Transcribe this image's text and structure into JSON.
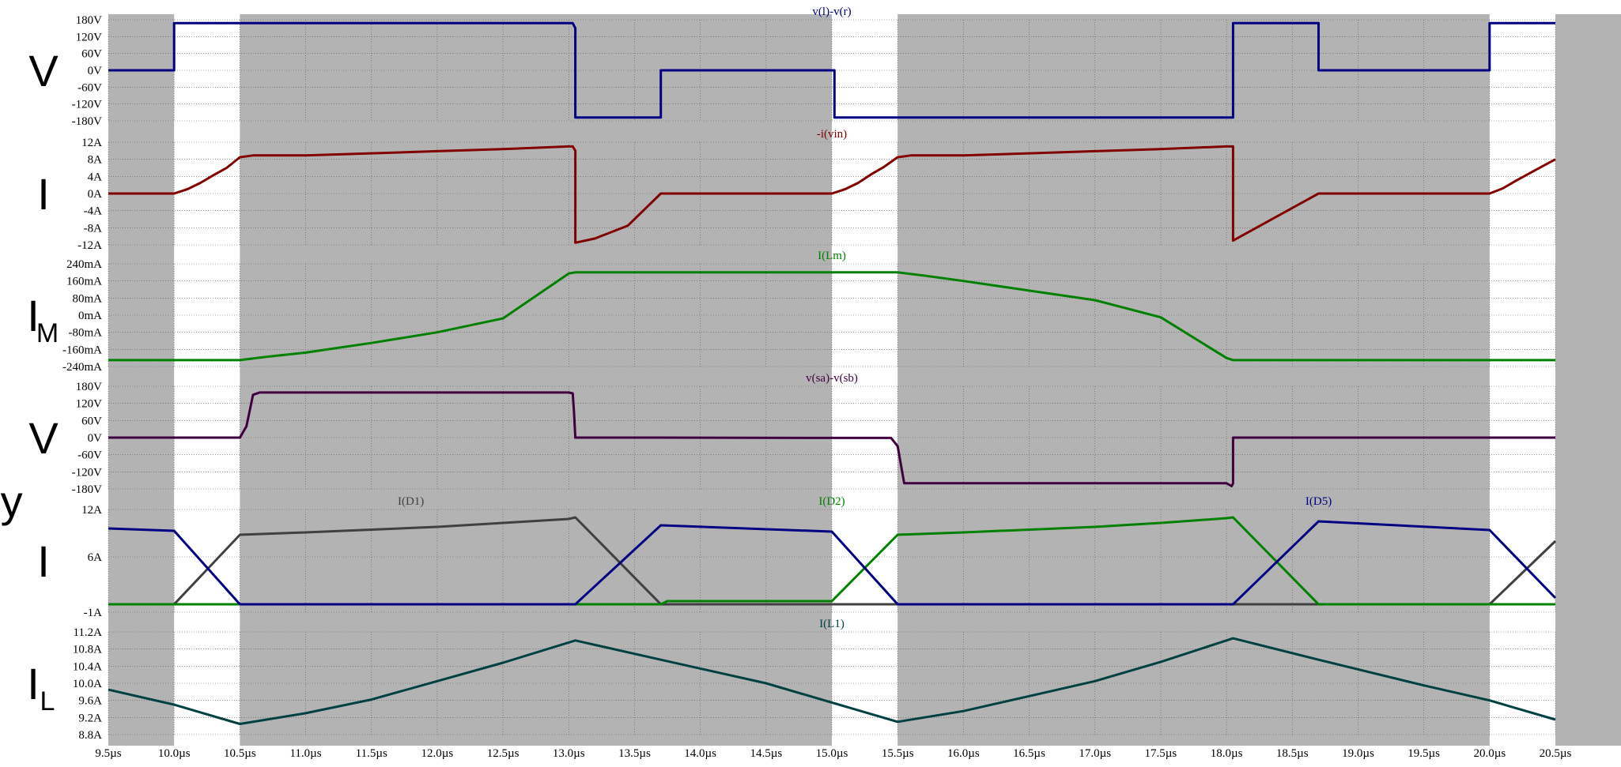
{
  "chart_data": {
    "type": "line",
    "x_axis": {
      "range": [
        9.5,
        20.5
      ],
      "unit": "µs",
      "tick_values": [
        9.5,
        10.0,
        10.5,
        11.0,
        11.5,
        12.0,
        12.5,
        13.0,
        13.5,
        14.0,
        14.5,
        15.0,
        15.5,
        16.0,
        16.5,
        17.0,
        17.5,
        18.0,
        18.5,
        19.0,
        19.5,
        20.0,
        20.5
      ],
      "tick_labels": [
        "9.5µs",
        "10.0µs",
        "10.5µs",
        "11.0µs",
        "11.5µs",
        "12.0µs",
        "12.5µs",
        "13.0µs",
        "13.5µs",
        "14.0µs",
        "14.5µs",
        "15.0µs",
        "15.5µs",
        "16.0µs",
        "16.5µs",
        "17.0µs",
        "17.5µs",
        "18.0µs",
        "18.5µs",
        "19.0µs",
        "19.5µs",
        "20.0µs",
        "20.5µs"
      ]
    },
    "grid": true,
    "shaded_intervals": [
      [
        9.5,
        10.0
      ],
      [
        10.5,
        15.0
      ],
      [
        15.5,
        20.0
      ],
      [
        20.5,
        21.0
      ]
    ],
    "colors": {
      "shade": "#b3b3b3",
      "grid": "#5a5a5a"
    },
    "panels": [
      {
        "side_label": "V",
        "side_sub": "",
        "ylim": [
          -180,
          180
        ],
        "ytick_values": [
          180,
          120,
          60,
          0,
          -60,
          -120,
          -180
        ],
        "ytick_labels": [
          "180V",
          "120V",
          "60V",
          "0V",
          "-60V",
          "-120V",
          "-180V"
        ],
        "series": [
          {
            "name": "v(l)-v(r)",
            "color": "#000080",
            "label_x": 15.0,
            "points": [
              [
                9.5,
                0
              ],
              [
                10.0,
                0
              ],
              [
                10.0,
                168
              ],
              [
                13.03,
                168
              ],
              [
                13.05,
                150
              ],
              [
                13.05,
                -168
              ],
              [
                13.7,
                -168
              ],
              [
                13.7,
                0
              ],
              [
                15.02,
                0
              ],
              [
                15.02,
                -168
              ],
              [
                18.05,
                -168
              ],
              [
                18.05,
                168
              ],
              [
                18.7,
                168
              ],
              [
                18.7,
                0
              ],
              [
                20.0,
                0
              ],
              [
                20.0,
                168
              ],
              [
                20.5,
                168
              ]
            ]
          }
        ]
      },
      {
        "side_label": "I",
        "side_sub": "",
        "ylim": [
          -12,
          12
        ],
        "ytick_values": [
          12,
          8,
          4,
          0,
          -4,
          -8,
          -12
        ],
        "ytick_labels": [
          "12A",
          "8A",
          "4A",
          "0A",
          "-4A",
          "-8A",
          "-12A"
        ],
        "series": [
          {
            "name": "-i(vin)",
            "color": "#800000",
            "label_x": 15.0,
            "points": [
              [
                9.5,
                0
              ],
              [
                10.0,
                0
              ],
              [
                10.1,
                1.0
              ],
              [
                10.2,
                2.5
              ],
              [
                10.3,
                4.3
              ],
              [
                10.4,
                6.0
              ],
              [
                10.5,
                8.5
              ],
              [
                10.6,
                8.9
              ],
              [
                11.0,
                8.9
              ],
              [
                11.5,
                9.4
              ],
              [
                12.0,
                9.9
              ],
              [
                12.5,
                10.4
              ],
              [
                13.0,
                11.0
              ],
              [
                13.03,
                11.0
              ],
              [
                13.05,
                10.0
              ],
              [
                13.05,
                -11.5
              ],
              [
                13.2,
                -10.5
              ],
              [
                13.45,
                -7.5
              ],
              [
                13.7,
                0
              ],
              [
                15.0,
                0
              ],
              [
                15.1,
                1.0
              ],
              [
                15.2,
                2.5
              ],
              [
                15.3,
                4.5
              ],
              [
                15.4,
                6.3
              ],
              [
                15.5,
                8.5
              ],
              [
                15.6,
                8.9
              ],
              [
                16.0,
                8.9
              ],
              [
                16.5,
                9.4
              ],
              [
                17.0,
                9.9
              ],
              [
                17.5,
                10.4
              ],
              [
                18.0,
                11.0
              ],
              [
                18.05,
                11.0
              ],
              [
                18.05,
                -11.0
              ],
              [
                18.7,
                0
              ],
              [
                20.0,
                0
              ],
              [
                20.1,
                1.2
              ],
              [
                20.2,
                3.0
              ],
              [
                20.35,
                5.5
              ],
              [
                20.5,
                8.0
              ]
            ]
          }
        ]
      },
      {
        "side_label": "I",
        "side_sub": "M",
        "ylim": [
          -240,
          240
        ],
        "ytick_values": [
          240,
          160,
          80,
          0,
          -80,
          -160,
          -240
        ],
        "ytick_labels": [
          "240mA",
          "160mA",
          "80mA",
          "0mA",
          "-80mA",
          "-160mA",
          "-240mA"
        ],
        "series": [
          {
            "name": "I(Lm)",
            "color": "#008000",
            "label_x": 15.0,
            "points": [
              [
                9.5,
                -210
              ],
              [
                10.5,
                -210
              ],
              [
                10.7,
                -195
              ],
              [
                11.0,
                -175
              ],
              [
                11.5,
                -130
              ],
              [
                12.0,
                -80
              ],
              [
                12.5,
                -15
              ],
              [
                13.0,
                195
              ],
              [
                13.05,
                200
              ],
              [
                15.0,
                200
              ],
              [
                15.5,
                200
              ],
              [
                15.7,
                185
              ],
              [
                16.0,
                160
              ],
              [
                16.5,
                115
              ],
              [
                17.0,
                70
              ],
              [
                17.5,
                -10
              ],
              [
                18.0,
                -200
              ],
              [
                18.05,
                -210
              ],
              [
                20.5,
                -210
              ]
            ]
          }
        ]
      },
      {
        "side_label": "V",
        "side_sub": "",
        "ylim": [
          -180,
          180
        ],
        "ytick_values": [
          180,
          120,
          60,
          0,
          -60,
          -120,
          -180
        ],
        "ytick_labels": [
          "180V",
          "120V",
          "60V",
          "0V",
          "-60V",
          "-120V",
          "-180V"
        ],
        "series": [
          {
            "name": "v(sa)-v(sb)",
            "color": "#400040",
            "label_x": 15.0,
            "points": [
              [
                9.5,
                0
              ],
              [
                10.5,
                0
              ],
              [
                10.55,
                40
              ],
              [
                10.6,
                150
              ],
              [
                10.65,
                158
              ],
              [
                13.0,
                158
              ],
              [
                13.03,
                155
              ],
              [
                13.04,
                90
              ],
              [
                13.05,
                0
              ],
              [
                13.7,
                0
              ],
              [
                15.0,
                -1
              ],
              [
                15.45,
                -1
              ],
              [
                15.5,
                -30
              ],
              [
                15.55,
                -160
              ],
              [
                18.0,
                -160
              ],
              [
                18.04,
                -170
              ],
              [
                18.05,
                -160
              ],
              [
                18.05,
                0
              ],
              [
                20.5,
                0
              ]
            ]
          }
        ]
      },
      {
        "side_label": "I",
        "side_sub": "",
        "ylim": [
          -1,
          12
        ],
        "ytick_values": [
          12,
          6,
          -1
        ],
        "ytick_labels": [
          "12A",
          "6A",
          "-1A"
        ],
        "series": [
          {
            "name": "I(D1)",
            "color": "#404040",
            "label_x": 11.8,
            "points": [
              [
                9.5,
                0
              ],
              [
                10.0,
                0
              ],
              [
                10.5,
                8.8
              ],
              [
                11.0,
                9.1
              ],
              [
                12.0,
                9.8
              ],
              [
                12.5,
                10.3
              ],
              [
                13.0,
                10.8
              ],
              [
                13.05,
                11.0
              ],
              [
                13.7,
                0
              ],
              [
                20.0,
                0
              ],
              [
                20.5,
                8.0
              ]
            ]
          },
          {
            "name": "I(D2)",
            "color": "#008000",
            "label_x": 15.0,
            "points": [
              [
                9.5,
                0
              ],
              [
                13.7,
                0
              ],
              [
                13.75,
                0.4
              ],
              [
                15.0,
                0.4
              ],
              [
                15.5,
                8.8
              ],
              [
                16.0,
                9.1
              ],
              [
                17.0,
                9.8
              ],
              [
                17.5,
                10.3
              ],
              [
                18.0,
                10.9
              ],
              [
                18.05,
                11.0
              ],
              [
                18.7,
                0
              ],
              [
                20.5,
                0
              ]
            ]
          },
          {
            "name": "I(D5)",
            "color": "#000080",
            "label_x": 18.7,
            "points": [
              [
                9.5,
                9.6
              ],
              [
                10.0,
                9.3
              ],
              [
                10.5,
                0
              ],
              [
                13.05,
                0
              ],
              [
                13.7,
                10.0
              ],
              [
                15.0,
                9.2
              ],
              [
                15.5,
                0
              ],
              [
                18.05,
                0
              ],
              [
                18.7,
                10.5
              ],
              [
                20.0,
                9.4
              ],
              [
                20.5,
                0.8
              ]
            ]
          }
        ]
      },
      {
        "side_label": "I",
        "side_sub": "L",
        "ylim": [
          8.8,
          11.2
        ],
        "ytick_values": [
          11.2,
          10.8,
          10.4,
          10.0,
          9.6,
          9.2,
          8.8
        ],
        "ytick_labels": [
          "11.2A",
          "10.8A",
          "10.4A",
          "10.0A",
          "9.6A",
          "9.2A",
          "8.8A"
        ],
        "series": [
          {
            "name": "I(L1)",
            "color": "#004040",
            "label_x": 15.0,
            "points": [
              [
                9.5,
                9.85
              ],
              [
                10.0,
                9.5
              ],
              [
                10.5,
                9.05
              ],
              [
                11.0,
                9.3
              ],
              [
                11.5,
                9.62
              ],
              [
                12.0,
                10.05
              ],
              [
                12.5,
                10.48
              ],
              [
                13.05,
                11.0
              ],
              [
                13.7,
                10.55
              ],
              [
                14.5,
                10.0
              ],
              [
                15.0,
                9.55
              ],
              [
                15.5,
                9.1
              ],
              [
                16.0,
                9.35
              ],
              [
                16.5,
                9.7
              ],
              [
                17.0,
                10.05
              ],
              [
                17.5,
                10.5
              ],
              [
                18.05,
                11.05
              ],
              [
                18.7,
                10.55
              ],
              [
                19.5,
                9.95
              ],
              [
                20.0,
                9.6
              ],
              [
                20.5,
                9.15
              ]
            ]
          }
        ]
      }
    ],
    "cropped_left_label": "ry"
  }
}
